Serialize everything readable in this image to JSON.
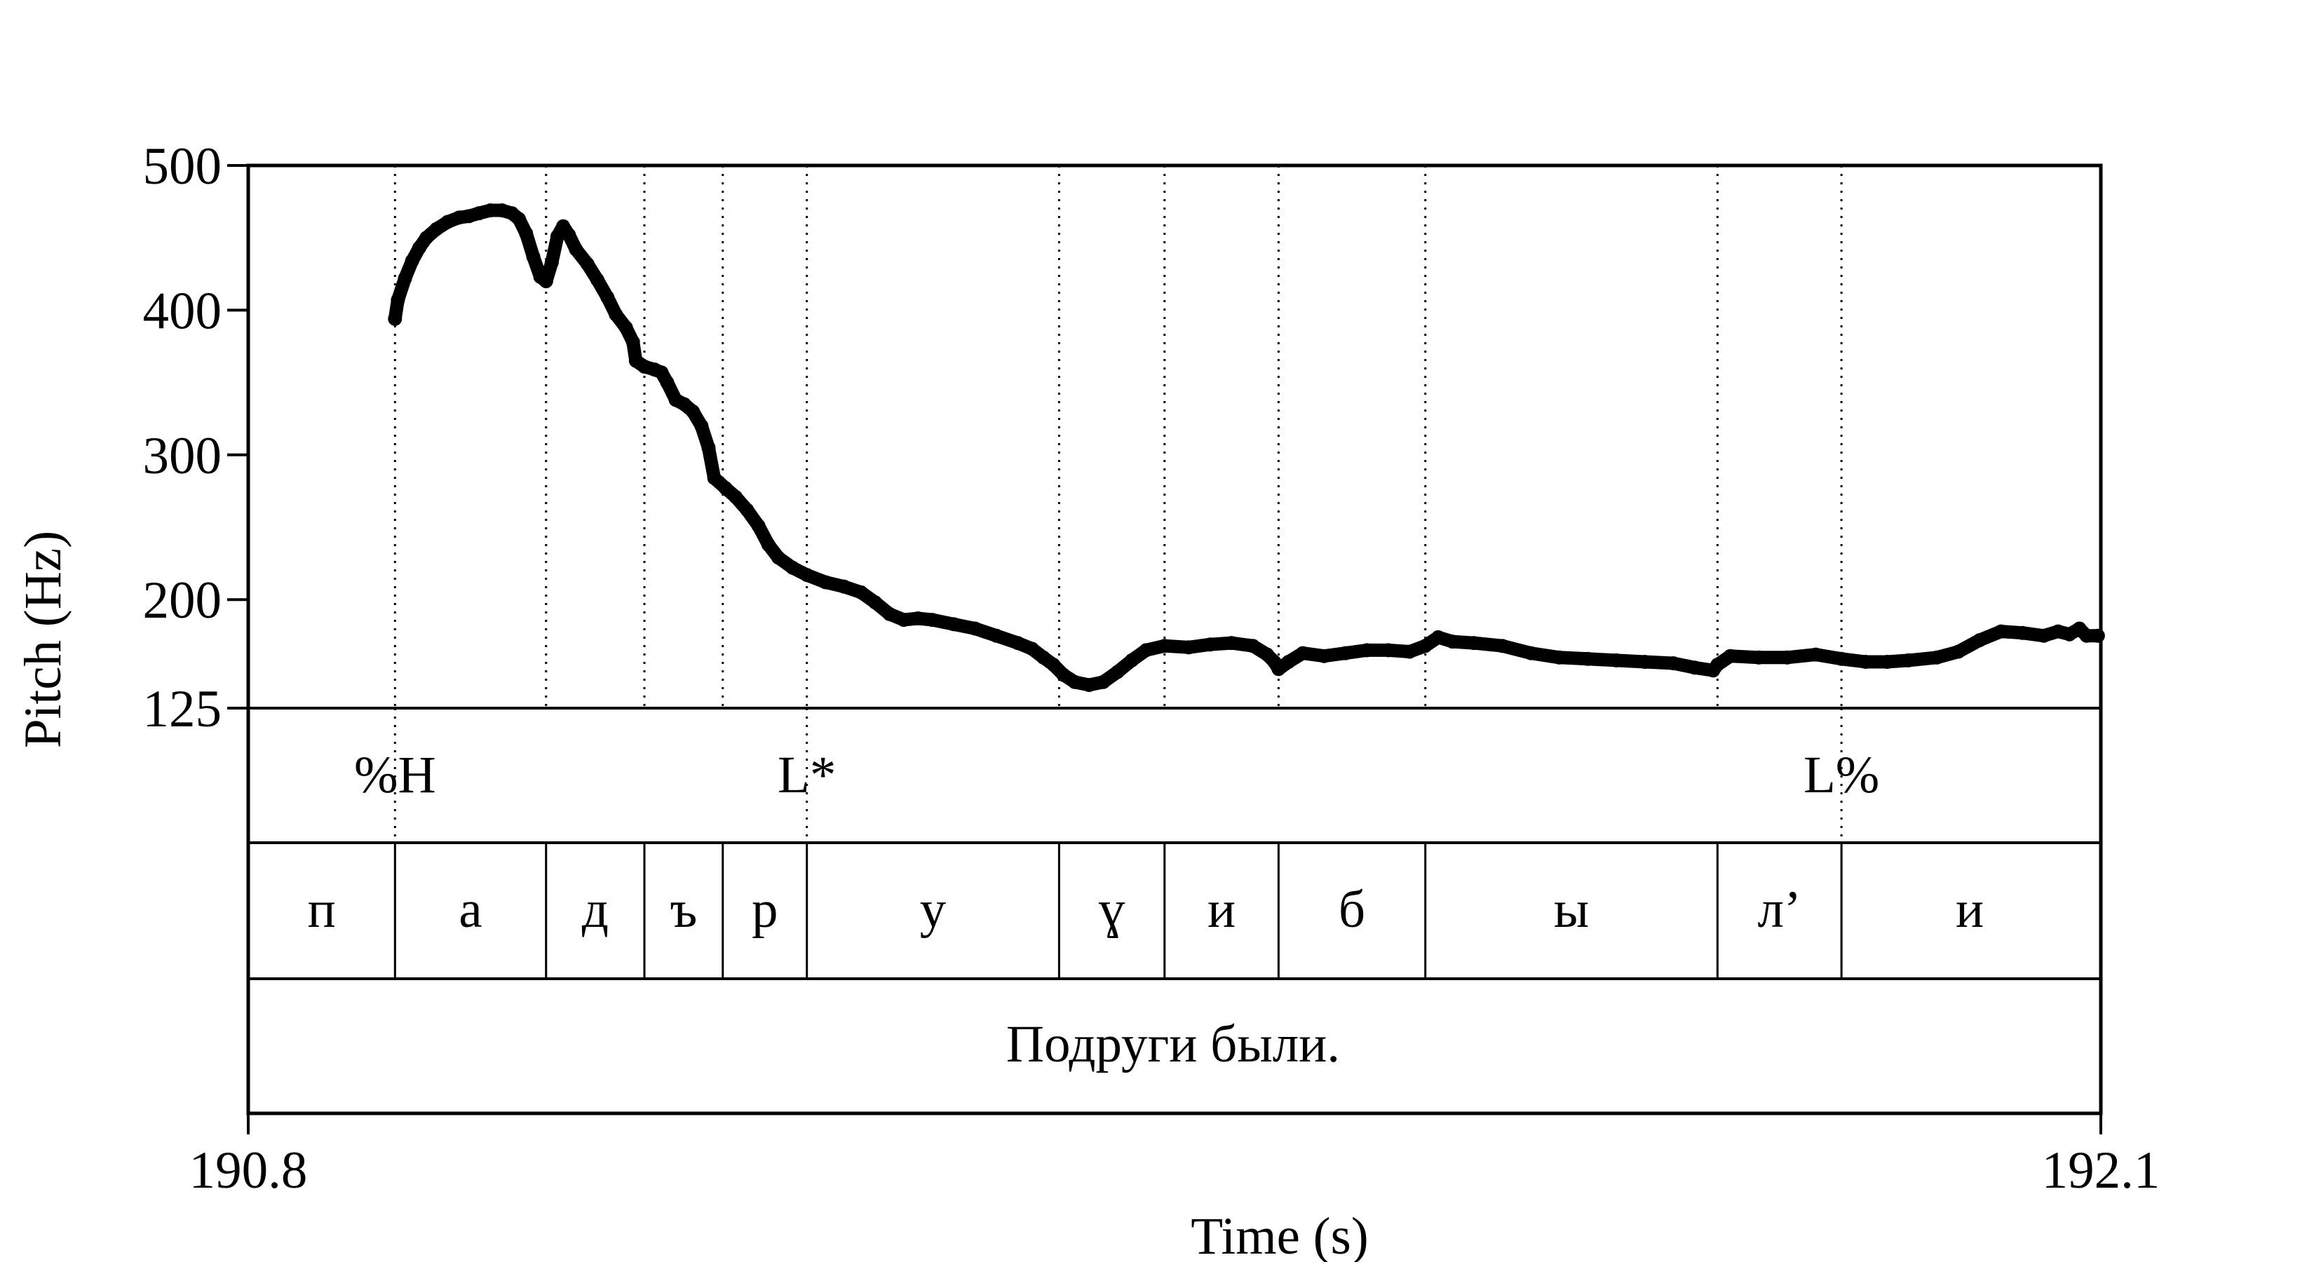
{
  "chart_data": {
    "type": "line",
    "xlabel": "Time (s)",
    "ylabel": "Pitch (Hz)",
    "xlim": [
      190.8,
      192.1
    ],
    "ylim": [
      125,
      500
    ],
    "x_ticks": [
      "190.8",
      "192.1"
    ],
    "y_ticks": [
      {
        "value": 500,
        "label": "500"
      },
      {
        "value": 400,
        "label": "400"
      },
      {
        "value": 300,
        "label": "300"
      },
      {
        "value": 200,
        "label": "200"
      },
      {
        "value": 125,
        "label": "125"
      }
    ],
    "boundaries": [
      190.903,
      191.009,
      191.078,
      191.133,
      191.192,
      191.369,
      191.443,
      191.523,
      191.626,
      191.831,
      191.918
    ],
    "tones": [
      {
        "label": "%H",
        "time": 190.903
      },
      {
        "label": "L*",
        "time": 191.192
      },
      {
        "label": "L%",
        "time": 191.918
      }
    ],
    "segments": [
      {
        "label": "п",
        "start": 190.8,
        "end": 190.903
      },
      {
        "label": "а",
        "start": 190.903,
        "end": 191.009
      },
      {
        "label": "д",
        "start": 191.009,
        "end": 191.078
      },
      {
        "label": "ъ",
        "start": 191.078,
        "end": 191.133
      },
      {
        "label": "р",
        "start": 191.133,
        "end": 191.192
      },
      {
        "label": "у",
        "start": 191.192,
        "end": 191.369
      },
      {
        "label": "ɣ",
        "start": 191.369,
        "end": 191.443
      },
      {
        "label": "и",
        "start": 191.443,
        "end": 191.523
      },
      {
        "label": "б",
        "start": 191.523,
        "end": 191.626
      },
      {
        "label": "ы",
        "start": 191.626,
        "end": 191.831
      },
      {
        "label": "л’",
        "start": 191.831,
        "end": 191.918
      },
      {
        "label": "и",
        "start": 191.918,
        "end": 192.098
      }
    ],
    "sentence": {
      "label": "Подруги были.",
      "start": 190.8,
      "end": 192.098
    },
    "series": [
      {
        "points": [
          [
            190.903,
            394
          ],
          [
            190.905,
            407
          ],
          [
            190.91,
            422
          ],
          [
            190.915,
            434
          ],
          [
            190.92,
            443
          ],
          [
            190.925,
            450
          ],
          [
            190.932,
            456
          ],
          [
            190.94,
            461
          ],
          [
            190.948,
            464
          ],
          [
            190.955,
            465
          ],
          [
            190.962,
            467
          ],
          [
            190.97,
            469
          ],
          [
            190.978,
            469
          ],
          [
            190.985,
            467
          ],
          [
            190.99,
            463
          ],
          [
            190.995,
            453
          ],
          [
            191.0,
            437
          ],
          [
            191.005,
            423
          ],
          [
            191.009,
            420
          ],
          [
            191.013,
            433
          ],
          [
            191.017,
            451
          ],
          [
            191.021,
            458
          ],
          [
            191.025,
            452
          ],
          [
            191.03,
            442
          ],
          [
            191.038,
            432
          ],
          [
            191.045,
            421
          ],
          [
            191.052,
            409
          ],
          [
            191.058,
            397
          ],
          [
            191.065,
            388
          ],
          [
            191.07,
            378
          ],
          [
            191.072,
            365
          ],
          [
            191.078,
            361
          ],
          [
            191.085,
            359
          ],
          [
            191.09,
            357
          ],
          [
            191.094,
            350
          ],
          [
            191.1,
            338
          ],
          [
            191.106,
            335
          ],
          [
            191.112,
            330
          ],
          [
            191.118,
            320
          ],
          [
            191.123,
            305
          ],
          [
            191.127,
            284
          ],
          [
            191.135,
            277
          ],
          [
            191.142,
            271
          ],
          [
            191.15,
            262
          ],
          [
            191.158,
            251
          ],
          [
            191.165,
            238
          ],
          [
            191.172,
            229
          ],
          [
            191.182,
            222
          ],
          [
            191.192,
            217
          ],
          [
            191.205,
            212
          ],
          [
            191.218,
            209
          ],
          [
            191.23,
            205
          ],
          [
            191.24,
            198
          ],
          [
            191.25,
            190
          ],
          [
            191.26,
            186
          ],
          [
            191.27,
            187
          ],
          [
            191.28,
            186
          ],
          [
            191.295,
            183
          ],
          [
            191.31,
            180
          ],
          [
            191.325,
            175
          ],
          [
            191.34,
            170
          ],
          [
            191.35,
            166
          ],
          [
            191.358,
            160
          ],
          [
            191.365,
            155
          ],
          [
            191.372,
            148
          ],
          [
            191.38,
            143
          ],
          [
            191.39,
            141
          ],
          [
            191.4,
            143
          ],
          [
            191.41,
            150
          ],
          [
            191.42,
            158
          ],
          [
            191.43,
            165
          ],
          [
            191.443,
            168
          ],
          [
            191.46,
            167
          ],
          [
            191.475,
            169
          ],
          [
            191.49,
            170
          ],
          [
            191.505,
            168
          ],
          [
            191.515,
            162
          ],
          [
            191.52,
            157
          ],
          [
            191.523,
            152
          ],
          [
            191.53,
            157
          ],
          [
            191.54,
            163
          ],
          [
            191.555,
            161
          ],
          [
            191.57,
            163
          ],
          [
            191.585,
            165
          ],
          [
            191.6,
            165
          ],
          [
            191.615,
            164
          ],
          [
            191.626,
            168
          ],
          [
            191.635,
            174
          ],
          [
            191.645,
            171
          ],
          [
            191.66,
            170
          ],
          [
            191.68,
            168
          ],
          [
            191.7,
            163
          ],
          [
            191.72,
            160
          ],
          [
            191.74,
            159
          ],
          [
            191.76,
            158
          ],
          [
            191.78,
            157
          ],
          [
            191.8,
            156
          ],
          [
            191.815,
            153
          ],
          [
            191.828,
            151
          ],
          [
            191.831,
            155
          ],
          [
            191.84,
            161
          ],
          [
            191.86,
            160
          ],
          [
            191.88,
            160
          ],
          [
            191.9,
            162
          ],
          [
            191.918,
            159
          ],
          [
            191.935,
            157
          ],
          [
            191.95,
            157
          ],
          [
            191.965,
            158
          ],
          [
            191.985,
            160
          ],
          [
            192.0,
            164
          ],
          [
            192.015,
            172
          ],
          [
            192.03,
            178
          ],
          [
            192.045,
            177
          ],
          [
            192.06,
            175
          ],
          [
            192.07,
            178
          ],
          [
            192.078,
            176
          ],
          [
            192.085,
            180
          ],
          [
            192.09,
            175
          ],
          [
            192.098,
            175
          ]
        ]
      }
    ]
  }
}
